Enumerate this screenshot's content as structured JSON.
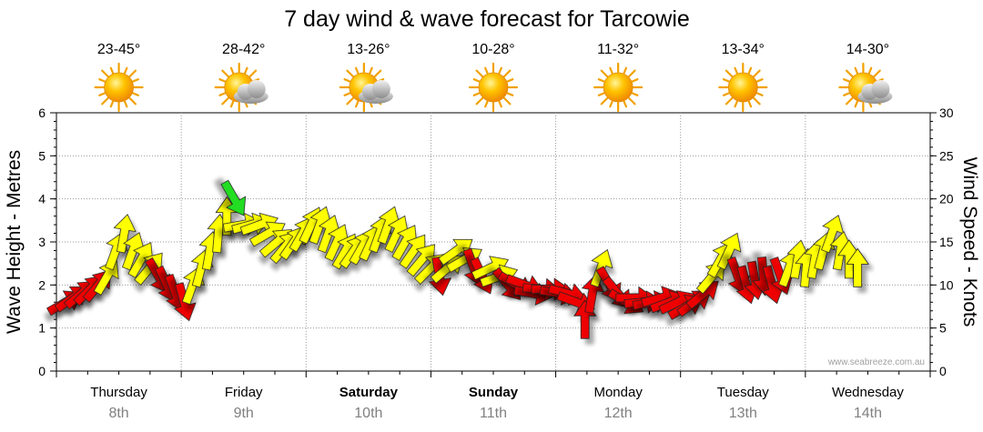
{
  "chart_data": {
    "type": "line",
    "title": "7 day wind & wave forecast for Tarcowie",
    "ylabel_left": "Wave Height - Metres",
    "ylabel_right": "Wind Speed - Knots",
    "ylim_left": [
      0,
      6
    ],
    "ylim_right": [
      0,
      30
    ],
    "yticks_left": [
      "0",
      "1",
      "2",
      "3",
      "4",
      "5",
      "6"
    ],
    "yticks_right": [
      "0",
      "5",
      "10",
      "15",
      "20",
      "25",
      "30"
    ],
    "grid": true,
    "credit": "www.seabreeze.com.au",
    "days": [
      {
        "name": "Thursday",
        "date": "8th",
        "temp": "23-45°",
        "weather": "sun",
        "bold": false
      },
      {
        "name": "Friday",
        "date": "9th",
        "temp": "28-42°",
        "weather": "sun-cloud",
        "bold": false
      },
      {
        "name": "Saturday",
        "date": "10th",
        "temp": "13-26°",
        "weather": "sun-cloud",
        "bold": true
      },
      {
        "name": "Sunday",
        "date": "11th",
        "temp": "10-28°",
        "weather": "sun",
        "bold": true
      },
      {
        "name": "Monday",
        "date": "12th",
        "temp": "11-32°",
        "weather": "sun",
        "bold": false
      },
      {
        "name": "Tuesday",
        "date": "13th",
        "temp": "13-34°",
        "weather": "sun",
        "bold": false
      },
      {
        "name": "Wednesday",
        "date": "14th",
        "temp": "14-30°",
        "weather": "sun-cloud",
        "bold": false
      }
    ],
    "wind_series": [
      {
        "t": 0.0,
        "knots": 8,
        "dir": 240,
        "color": "red"
      },
      {
        "t": 0.06,
        "knots": 8.5,
        "dir": 235,
        "color": "red"
      },
      {
        "t": 0.13,
        "knots": 9,
        "dir": 230,
        "color": "red"
      },
      {
        "t": 0.2,
        "knots": 9.5,
        "dir": 225,
        "color": "red"
      },
      {
        "t": 0.27,
        "knots": 10,
        "dir": 220,
        "color": "red"
      },
      {
        "t": 0.34,
        "knots": 11,
        "dir": 210,
        "color": "yellow"
      },
      {
        "t": 0.41,
        "knots": 14,
        "dir": 200,
        "color": "yellow"
      },
      {
        "t": 0.48,
        "knots": 16,
        "dir": 190,
        "color": "yellow"
      },
      {
        "t": 0.55,
        "knots": 14,
        "dir": 200,
        "color": "yellow"
      },
      {
        "t": 0.62,
        "knots": 13,
        "dir": 210,
        "color": "yellow"
      },
      {
        "t": 0.69,
        "knots": 12,
        "dir": 220,
        "color": "yellow"
      },
      {
        "t": 0.76,
        "knots": 11,
        "dir": 330,
        "color": "red"
      },
      {
        "t": 0.83,
        "knots": 10,
        "dir": 335,
        "color": "red"
      },
      {
        "t": 0.9,
        "knots": 9,
        "dir": 340,
        "color": "red"
      },
      {
        "t": 0.97,
        "knots": 8,
        "dir": 345,
        "color": "red"
      },
      {
        "t": 1.04,
        "knots": 10,
        "dir": 200,
        "color": "yellow"
      },
      {
        "t": 1.11,
        "knots": 12,
        "dir": 195,
        "color": "yellow"
      },
      {
        "t": 1.18,
        "knots": 14,
        "dir": 190,
        "color": "yellow"
      },
      {
        "t": 1.25,
        "knots": 16,
        "dir": 185,
        "color": "yellow"
      },
      {
        "t": 1.32,
        "knots": 18,
        "dir": 180,
        "color": "yellow"
      },
      {
        "t": 1.38,
        "knots": 20,
        "dir": 330,
        "color": "green"
      },
      {
        "t": 1.45,
        "knots": 17,
        "dir": 260,
        "color": "yellow"
      },
      {
        "t": 1.52,
        "knots": 17,
        "dir": 255,
        "color": "yellow"
      },
      {
        "t": 1.59,
        "knots": 17,
        "dir": 250,
        "color": "yellow"
      },
      {
        "t": 1.66,
        "knots": 16,
        "dir": 240,
        "color": "yellow"
      },
      {
        "t": 1.73,
        "knots": 15,
        "dir": 230,
        "color": "yellow"
      },
      {
        "t": 1.8,
        "knots": 14.5,
        "dir": 220,
        "color": "yellow"
      },
      {
        "t": 1.87,
        "knots": 15,
        "dir": 215,
        "color": "yellow"
      },
      {
        "t": 1.94,
        "knots": 16,
        "dir": 210,
        "color": "yellow"
      },
      {
        "t": 2.01,
        "knots": 17,
        "dir": 205,
        "color": "yellow"
      },
      {
        "t": 2.08,
        "knots": 17,
        "dir": 200,
        "color": "yellow"
      },
      {
        "t": 2.15,
        "knots": 16,
        "dir": 200,
        "color": "yellow"
      },
      {
        "t": 2.22,
        "knots": 15,
        "dir": 205,
        "color": "yellow"
      },
      {
        "t": 2.29,
        "knots": 14,
        "dir": 210,
        "color": "yellow"
      },
      {
        "t": 2.36,
        "knots": 14,
        "dir": 215,
        "color": "yellow"
      },
      {
        "t": 2.43,
        "knots": 14.5,
        "dir": 210,
        "color": "yellow"
      },
      {
        "t": 2.5,
        "knots": 15,
        "dir": 205,
        "color": "yellow"
      },
      {
        "t": 2.57,
        "knots": 16,
        "dir": 200,
        "color": "yellow"
      },
      {
        "t": 2.64,
        "knots": 17,
        "dir": 200,
        "color": "yellow"
      },
      {
        "t": 2.71,
        "knots": 16,
        "dir": 205,
        "color": "yellow"
      },
      {
        "t": 2.78,
        "knots": 15,
        "dir": 210,
        "color": "yellow"
      },
      {
        "t": 2.85,
        "knots": 14,
        "dir": 215,
        "color": "yellow"
      },
      {
        "t": 2.92,
        "knots": 13,
        "dir": 220,
        "color": "yellow"
      },
      {
        "t": 2.99,
        "knots": 12,
        "dir": 225,
        "color": "yellow"
      },
      {
        "t": 3.06,
        "knots": 11,
        "dir": 350,
        "color": "red"
      },
      {
        "t": 3.13,
        "knots": 12,
        "dir": 230,
        "color": "yellow"
      },
      {
        "t": 3.2,
        "knots": 14,
        "dir": 235,
        "color": "yellow"
      },
      {
        "t": 3.27,
        "knots": 13,
        "dir": 240,
        "color": "yellow"
      },
      {
        "t": 3.34,
        "knots": 12,
        "dir": 340,
        "color": "red"
      },
      {
        "t": 3.41,
        "knots": 11,
        "dir": 335,
        "color": "red"
      },
      {
        "t": 3.48,
        "knots": 12,
        "dir": 245,
        "color": "yellow"
      },
      {
        "t": 3.55,
        "knots": 11,
        "dir": 250,
        "color": "yellow"
      },
      {
        "t": 3.62,
        "knots": 10,
        "dir": 320,
        "color": "red"
      },
      {
        "t": 3.69,
        "knots": 10,
        "dir": 300,
        "color": "red"
      },
      {
        "t": 3.76,
        "knots": 10,
        "dir": 290,
        "color": "red"
      },
      {
        "t": 3.83,
        "knots": 9,
        "dir": 280,
        "color": "red"
      },
      {
        "t": 3.9,
        "knots": 9.5,
        "dir": 275,
        "color": "red"
      },
      {
        "t": 3.97,
        "knots": 9.5,
        "dir": 270,
        "color": "red"
      },
      {
        "t": 4.04,
        "knots": 9,
        "dir": 280,
        "color": "red"
      },
      {
        "t": 4.11,
        "knots": 9,
        "dir": 285,
        "color": "red"
      },
      {
        "t": 4.18,
        "knots": 8,
        "dir": 290,
        "color": "red"
      },
      {
        "t": 4.25,
        "knots": 6,
        "dir": 180,
        "color": "red"
      },
      {
        "t": 4.31,
        "knots": 9,
        "dir": 190,
        "color": "red"
      },
      {
        "t": 4.38,
        "knots": 12,
        "dir": 200,
        "color": "yellow"
      },
      {
        "t": 4.45,
        "knots": 10,
        "dir": 330,
        "color": "red"
      },
      {
        "t": 4.52,
        "knots": 9,
        "dir": 320,
        "color": "red"
      },
      {
        "t": 4.59,
        "knots": 8,
        "dir": 300,
        "color": "red"
      },
      {
        "t": 4.66,
        "knots": 8.5,
        "dir": 270,
        "color": "red"
      },
      {
        "t": 4.73,
        "knots": 8,
        "dir": 265,
        "color": "red"
      },
      {
        "t": 4.8,
        "knots": 8,
        "dir": 260,
        "color": "red"
      },
      {
        "t": 4.87,
        "knots": 8.5,
        "dir": 255,
        "color": "red"
      },
      {
        "t": 4.94,
        "knots": 8,
        "dir": 250,
        "color": "red"
      },
      {
        "t": 5.01,
        "knots": 8,
        "dir": 245,
        "color": "red"
      },
      {
        "t": 5.08,
        "knots": 7.5,
        "dir": 240,
        "color": "red"
      },
      {
        "t": 5.15,
        "knots": 8,
        "dir": 235,
        "color": "red"
      },
      {
        "t": 5.22,
        "knots": 9,
        "dir": 230,
        "color": "red"
      },
      {
        "t": 5.29,
        "knots": 11,
        "dir": 220,
        "color": "yellow"
      },
      {
        "t": 5.36,
        "knots": 13,
        "dir": 210,
        "color": "yellow"
      },
      {
        "t": 5.43,
        "knots": 14,
        "dir": 205,
        "color": "yellow"
      },
      {
        "t": 5.5,
        "knots": 11,
        "dir": 340,
        "color": "red"
      },
      {
        "t": 5.57,
        "knots": 10,
        "dir": 345,
        "color": "red"
      },
      {
        "t": 5.64,
        "knots": 10.5,
        "dir": 350,
        "color": "red"
      },
      {
        "t": 5.71,
        "knots": 11,
        "dir": 355,
        "color": "red"
      },
      {
        "t": 5.78,
        "knots": 10,
        "dir": 345,
        "color": "red"
      },
      {
        "t": 5.85,
        "knots": 11,
        "dir": 340,
        "color": "red"
      },
      {
        "t": 5.92,
        "knots": 12,
        "dir": 200,
        "color": "yellow"
      },
      {
        "t": 5.99,
        "knots": 13,
        "dir": 190,
        "color": "yellow"
      },
      {
        "t": 6.06,
        "knots": 12,
        "dir": 185,
        "color": "yellow"
      },
      {
        "t": 6.13,
        "knots": 13,
        "dir": 190,
        "color": "yellow"
      },
      {
        "t": 6.2,
        "knots": 14,
        "dir": 195,
        "color": "yellow"
      },
      {
        "t": 6.27,
        "knots": 16,
        "dir": 200,
        "color": "yellow"
      },
      {
        "t": 6.34,
        "knots": 14,
        "dir": 190,
        "color": "yellow"
      },
      {
        "t": 6.41,
        "knots": 13,
        "dir": 180,
        "color": "yellow"
      },
      {
        "t": 6.48,
        "knots": 12,
        "dir": 180,
        "color": "yellow"
      }
    ]
  }
}
